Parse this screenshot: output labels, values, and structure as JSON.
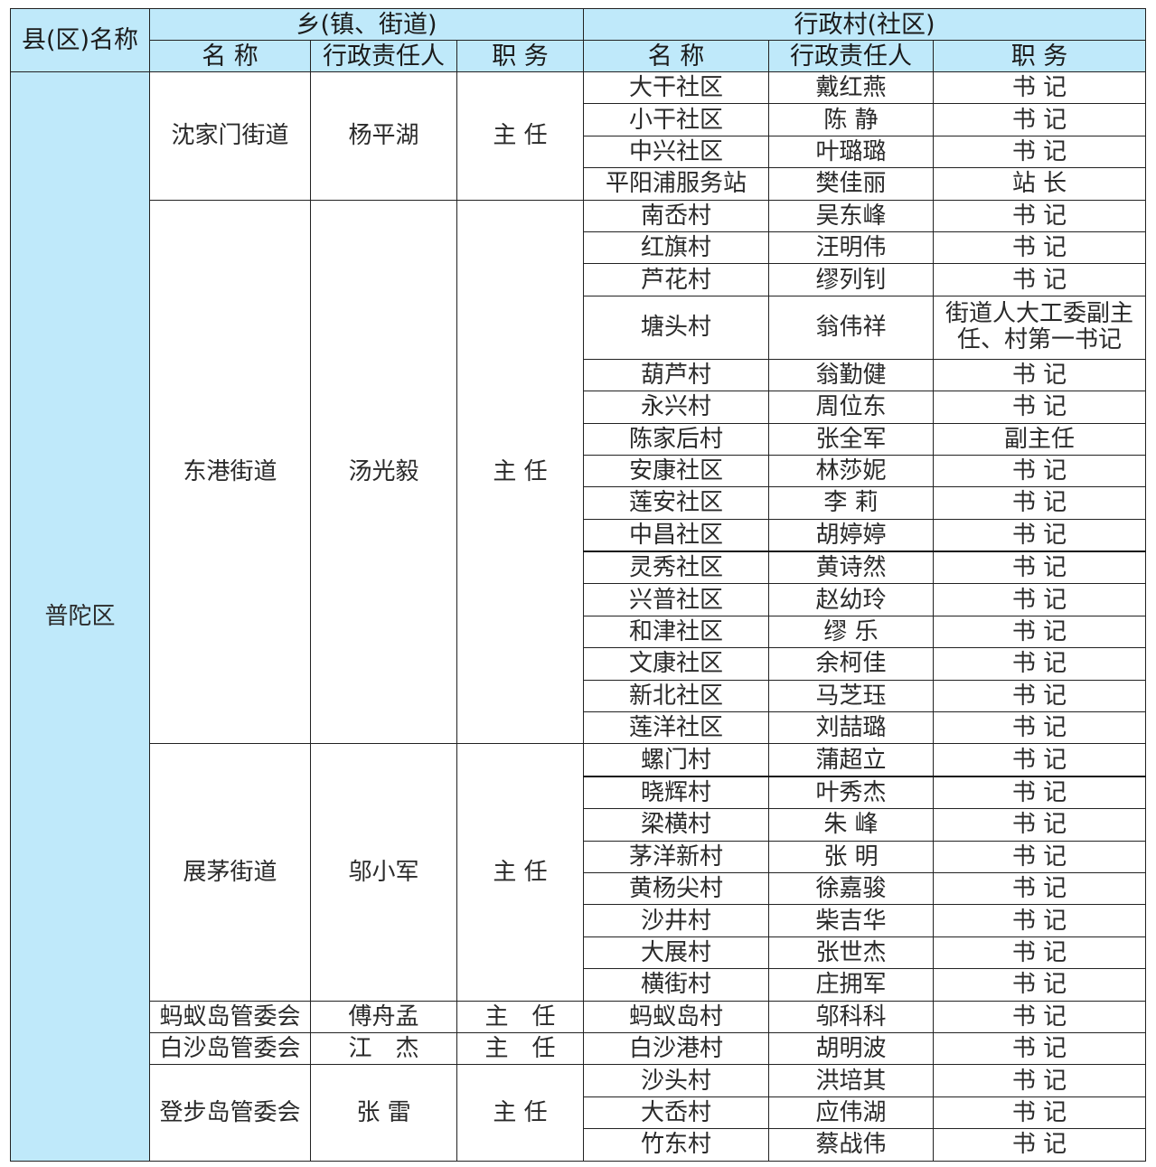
{
  "header": {
    "county": "县(区)名称",
    "township_group": "乡(镇、街道)",
    "village_group": "行政村(社区)",
    "name": "名 称",
    "person": "行政责任人",
    "position": "职 务"
  },
  "colors": {
    "header_bg": "#bfe9fa",
    "border": "#222222"
  },
  "district": "普陀区",
  "townships": [
    {
      "name": "沈家门街道",
      "person": "杨平湖",
      "position": "主 任",
      "villages": [
        {
          "name": "大干社区",
          "person": "戴红燕",
          "position": "书 记"
        },
        {
          "name": "小干社区",
          "person": "陈 静",
          "position": "书 记"
        },
        {
          "name": "中兴社区",
          "person": "叶璐璐",
          "position": "书 记"
        },
        {
          "name": "平阳浦服务站",
          "person": "樊佳丽",
          "position": "站 长"
        }
      ]
    },
    {
      "name": "东港街道",
      "person": "汤光毅",
      "position": "主 任",
      "villages": [
        {
          "name": "南岙村",
          "person": "吴东峰",
          "position": "书 记"
        },
        {
          "name": "红旗村",
          "person": "汪明伟",
          "position": "书 记"
        },
        {
          "name": "芦花村",
          "person": "缪列钊",
          "position": "书 记"
        },
        {
          "name": "塘头村",
          "person": "翁伟祥",
          "position": "街道人大工委副主任、村第一书记"
        },
        {
          "name": "葫芦村",
          "person": "翁勤健",
          "position": "书 记"
        },
        {
          "name": "永兴村",
          "person": "周位东",
          "position": "书 记"
        },
        {
          "name": "陈家后村",
          "person": "张全军",
          "position": "副主任"
        },
        {
          "name": "安康社区",
          "person": "林莎妮",
          "position": "书 记"
        },
        {
          "name": "莲安社区",
          "person": "李 莉",
          "position": "书 记"
        },
        {
          "name": "中昌社区",
          "person": "胡婷婷",
          "position": "书 记"
        },
        {
          "name": "灵秀社区",
          "person": "黄诗然",
          "position": "书 记"
        },
        {
          "name": "兴普社区",
          "person": "赵幼玲",
          "position": "书 记"
        },
        {
          "name": "和津社区",
          "person": "缪 乐",
          "position": "书 记"
        },
        {
          "name": "文康社区",
          "person": "余柯佳",
          "position": "书 记"
        },
        {
          "name": "新北社区",
          "person": "马芝珏",
          "position": "书 记"
        },
        {
          "name": "莲洋社区",
          "person": "刘喆璐",
          "position": "书 记"
        }
      ]
    },
    {
      "name": "展茅街道",
      "person": "邬小军",
      "position": "主 任",
      "villages": [
        {
          "name": "螺门村",
          "person": "蒲超立",
          "position": "书 记"
        },
        {
          "name": "晓辉村",
          "person": "叶秀杰",
          "position": "书 记"
        },
        {
          "name": "梁横村",
          "person": "朱 峰",
          "position": "书 记"
        },
        {
          "name": "茅洋新村",
          "person": "张 明",
          "position": "书 记"
        },
        {
          "name": "黄杨尖村",
          "person": "徐嘉骏",
          "position": "书 记"
        },
        {
          "name": "沙井村",
          "person": "柴吉华",
          "position": "书 记"
        },
        {
          "name": "大展村",
          "person": "张世杰",
          "position": "书 记"
        },
        {
          "name": "横街村",
          "person": "庄拥军",
          "position": "书 记"
        }
      ]
    },
    {
      "name": "蚂蚁岛管委会",
      "person": "傅舟孟",
      "position": "主　任",
      "villages": [
        {
          "name": "蚂蚁岛村",
          "person": "邬科科",
          "position": "书 记"
        }
      ]
    },
    {
      "name": "白沙岛管委会",
      "person": "江　杰",
      "position": "主　任",
      "villages": [
        {
          "name": "白沙港村",
          "person": "胡明波",
          "position": "书 记"
        }
      ]
    },
    {
      "name": "登步岛管委会",
      "person": "张 雷",
      "position": "主 任",
      "villages": [
        {
          "name": "沙头村",
          "person": "洪培其",
          "position": "书 记"
        },
        {
          "name": "大岙村",
          "person": "应伟湖",
          "position": "书 记"
        },
        {
          "name": "竹东村",
          "person": "蔡战伟",
          "position": "书 记"
        }
      ]
    }
  ]
}
